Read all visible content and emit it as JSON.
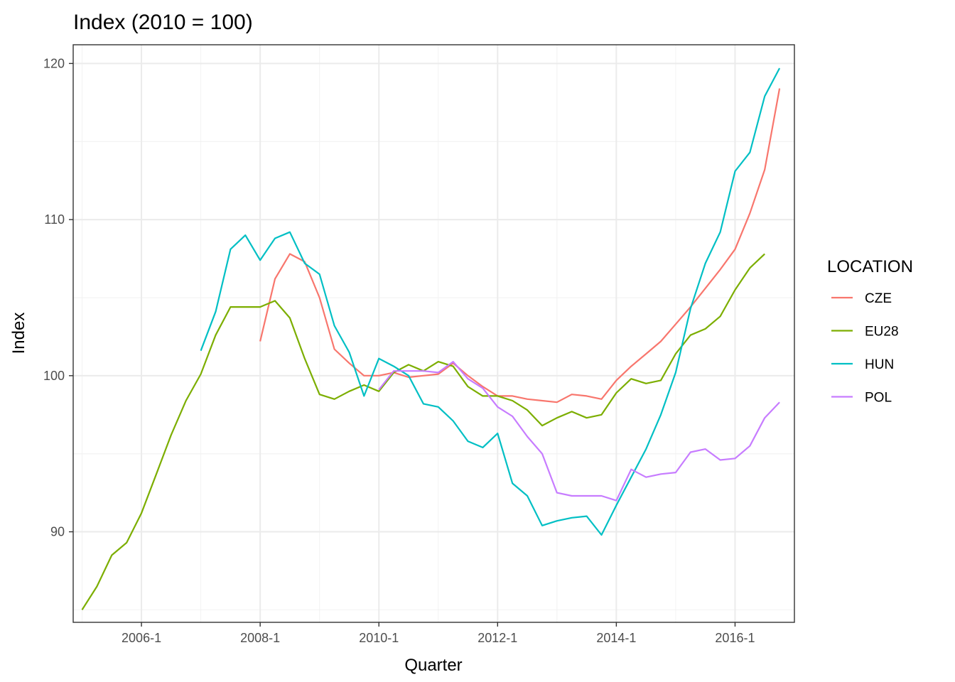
{
  "chart_data": {
    "type": "line",
    "title": "Index (2010 = 100)",
    "xlabel": "Quarter",
    "ylabel": "Index",
    "x_tick_labels": [
      "2006-1",
      "2008-1",
      "2010-1",
      "2012-1",
      "2014-1",
      "2016-1"
    ],
    "y_tick_labels": [
      "90",
      "100",
      "110",
      "120"
    ],
    "ylim": [
      84.2,
      121.2
    ],
    "grid": true,
    "legend": {
      "title": "LOCATION",
      "position": "right"
    },
    "series": [
      {
        "name": "CZE",
        "color": "#F8766D",
        "start": "2008-1",
        "values": [
          102.2,
          106.2,
          107.8,
          107.3,
          105.0,
          101.7,
          100.8,
          100.0,
          100.0,
          100.2,
          99.9,
          100.0,
          100.1,
          100.8,
          100.0,
          99.3,
          98.7,
          98.7,
          98.5,
          98.4,
          98.3,
          98.8,
          98.7,
          98.5,
          99.7,
          100.6,
          101.4,
          102.2,
          103.3,
          104.4,
          105.6,
          106.8,
          108.1,
          110.4,
          113.2,
          118.4
        ]
      },
      {
        "name": "EU28",
        "color": "#7CAE00",
        "start": "2005-1",
        "values": [
          85.0,
          86.5,
          88.5,
          89.3,
          91.2,
          93.7,
          96.2,
          98.4,
          100.1,
          102.6,
          104.4,
          104.4,
          104.4,
          104.8,
          103.7,
          101.1,
          98.8,
          98.5,
          99.0,
          99.4,
          99.0,
          100.2,
          100.7,
          100.3,
          100.9,
          100.6,
          99.3,
          98.7,
          98.7,
          98.4,
          97.8,
          96.8,
          97.3,
          97.7,
          97.3,
          97.5,
          98.9,
          99.8,
          99.5,
          99.7,
          101.4,
          102.6,
          103.0,
          103.8,
          105.5,
          106.9,
          107.8
        ]
      },
      {
        "name": "HUN",
        "color": "#00BFC4",
        "start": "2007-1",
        "values": [
          101.6,
          104.1,
          108.1,
          109.0,
          107.4,
          108.8,
          109.2,
          107.2,
          106.5,
          103.2,
          101.5,
          98.7,
          101.1,
          100.6,
          100.0,
          98.2,
          98.0,
          97.1,
          95.8,
          95.4,
          96.3,
          93.1,
          92.3,
          90.4,
          90.7,
          90.9,
          91.0,
          89.8,
          91.7,
          93.5,
          95.3,
          97.5,
          100.2,
          104.3,
          107.2,
          109.2,
          113.1,
          114.3,
          117.9,
          119.7
        ]
      },
      {
        "name": "POL",
        "color": "#C77CFF",
        "start": "2010-1",
        "values": [
          99.1,
          100.3,
          100.3,
          100.3,
          100.2,
          100.9,
          99.8,
          99.2,
          98.0,
          97.4,
          96.1,
          95.0,
          92.5,
          92.3,
          92.3,
          92.3,
          92.0,
          94.0,
          93.5,
          93.7,
          93.8,
          95.1,
          95.3,
          94.6,
          94.7,
          95.5,
          97.3,
          98.3
        ]
      }
    ]
  }
}
